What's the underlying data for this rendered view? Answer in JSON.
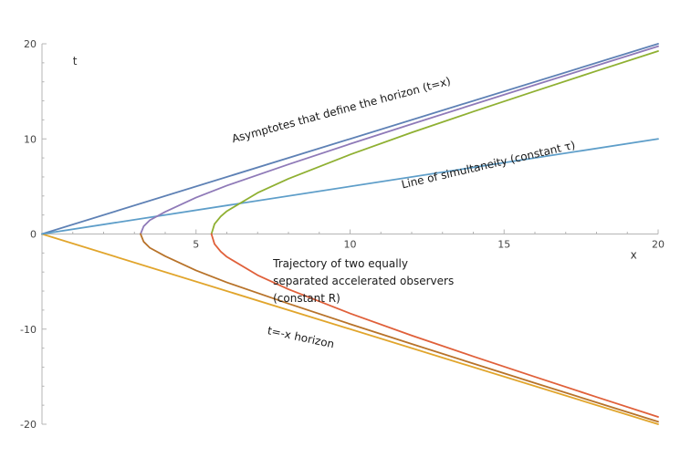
{
  "chart_data": {
    "type": "line",
    "title": "",
    "xlabel": "x",
    "ylabel": "t",
    "xlim": [
      0,
      20
    ],
    "ylim": [
      -20,
      20
    ],
    "x_ticks": [
      5,
      10,
      15,
      20
    ],
    "y_ticks": [
      -20,
      -10,
      0,
      10,
      20
    ],
    "grid": false,
    "colors": {
      "asymptote_upper": "#5E81B5",
      "simultaneity": "#5E9EC9",
      "trajectory_1_upper": "#8F7AB8",
      "trajectory_1_lower": "#B8732A",
      "trajectory_2_upper": "#8FB032",
      "trajectory_2_lower": "#E0603A",
      "asymptote_lower": "#E1A52C"
    },
    "series": [
      {
        "key": "asymptote_upper",
        "x": [
          0,
          20
        ],
        "y": [
          0,
          20
        ]
      },
      {
        "key": "asymptote_lower",
        "x": [
          0,
          20
        ],
        "y": [
          0,
          -20
        ]
      },
      {
        "key": "simultaneity",
        "x": [
          0,
          20
        ],
        "y": [
          0,
          10
        ]
      },
      {
        "key": "trajectory_1_upper",
        "x": [
          3.2,
          3.3,
          3.5,
          4,
          5,
          6,
          8,
          10,
          12,
          14,
          16,
          18,
          20
        ],
        "y": [
          0,
          0.81,
          1.45,
          2.33,
          3.83,
          5.09,
          7.32,
          9.47,
          11.56,
          13.62,
          15.67,
          17.71,
          19.74
        ]
      },
      {
        "key": "trajectory_1_lower",
        "x": [
          3.2,
          3.3,
          3.5,
          4,
          5,
          6,
          8,
          10,
          12,
          14,
          16,
          18,
          20
        ],
        "y": [
          0,
          -0.81,
          -1.45,
          -2.33,
          -3.83,
          -5.09,
          -7.32,
          -9.47,
          -11.56,
          -13.62,
          -15.67,
          -17.71,
          -19.74
        ]
      },
      {
        "key": "trajectory_2_upper",
        "x": [
          5.5,
          5.6,
          5.8,
          6,
          7,
          8,
          10,
          12,
          14,
          16,
          18,
          20
        ],
        "y": [
          0,
          1.05,
          1.84,
          2.4,
          4.33,
          5.81,
          8.35,
          10.67,
          12.87,
          15.02,
          17.14,
          19.23
        ]
      },
      {
        "key": "trajectory_2_lower",
        "x": [
          5.5,
          5.6,
          5.8,
          6,
          7,
          8,
          10,
          12,
          14,
          16,
          18,
          20
        ],
        "y": [
          0,
          -1.05,
          -1.84,
          -2.4,
          -4.33,
          -5.81,
          -8.35,
          -10.67,
          -12.87,
          -15.02,
          -17.14,
          -19.23
        ]
      }
    ],
    "annotations": [
      {
        "text": "Asymptotes that define the horizon (t=x)",
        "x": 6.2,
        "y": 9.6,
        "angle": -15
      },
      {
        "text": "Line of simultaneity (constant τ)",
        "x": 11.7,
        "y": 4.8,
        "angle": -13
      },
      {
        "lines": [
          "Trajectory of two equally",
          "separated accelerated observers",
          "(constant R)"
        ],
        "x": 7.5,
        "y": -3.5,
        "angle": 0
      },
      {
        "text": "t=-x horizon",
        "x": 7.3,
        "y": -10.5,
        "angle": 12
      }
    ]
  }
}
